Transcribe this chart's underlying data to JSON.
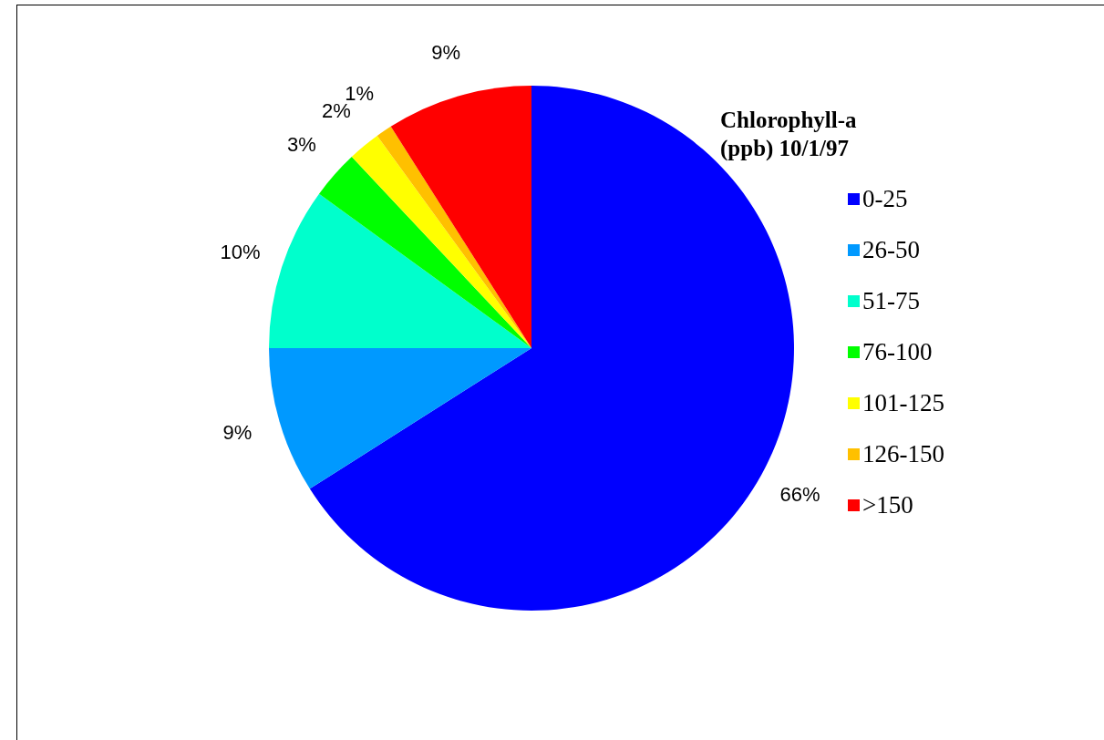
{
  "chart_data": {
    "type": "pie",
    "legend_title": "Chlorophyll-a (ppb) 10/1/97",
    "legend": "right",
    "categories": [
      "0-25",
      "26-50",
      "51-75",
      "76-100",
      "101-125",
      "126-150",
      ">150"
    ],
    "values": [
      66,
      9,
      10,
      3,
      2,
      1,
      9
    ],
    "colors": [
      "#0000ff",
      "#0099ff",
      "#00ffcc",
      "#00ff00",
      "#ffff00",
      "#ffc000",
      "#ff0000"
    ],
    "value_labels": [
      "66%",
      "9%",
      "10%",
      "3%",
      "2%",
      "1%",
      "9%"
    ]
  }
}
